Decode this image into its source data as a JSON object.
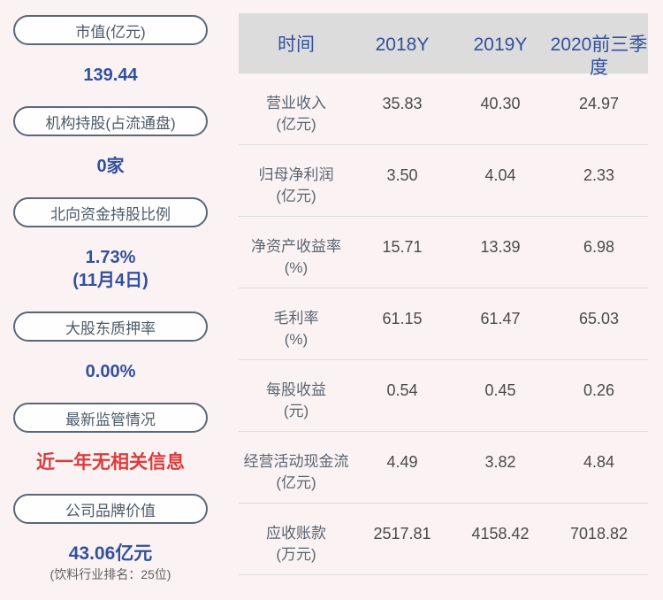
{
  "colors": {
    "page_bg": "#fbf3f3",
    "accent_blue": "#33509e",
    "accent_red": "#dc3b3c",
    "header_bg": "#dcdcdc",
    "pill_border": "#5b6777"
  },
  "sidebar": {
    "items": [
      {
        "label": "市值(亿元)",
        "value": "139.44"
      },
      {
        "label": "机构持股(占流通盘)",
        "value": "0家"
      },
      {
        "label": "北向资金持股比例",
        "value": "1.73%",
        "value_line2": "(11月4日)"
      },
      {
        "label": "大股东质押率",
        "value": "0.00%"
      },
      {
        "label": "最新监管情况",
        "value": "近一年无相关信息"
      },
      {
        "label": "公司品牌价值",
        "value": "43.06亿元",
        "subtext": "(饮料行业排名：25位)"
      }
    ]
  },
  "table": {
    "columns": [
      "时间",
      "2018Y",
      "2019Y",
      "2020前三季度"
    ],
    "rows": [
      {
        "label": "营业收入",
        "unit": "(亿元)",
        "values": [
          "35.83",
          "40.30",
          "24.97"
        ]
      },
      {
        "label": "归母净利润",
        "unit": "(亿元)",
        "values": [
          "3.50",
          "4.04",
          "2.33"
        ]
      },
      {
        "label": "净资产收益率",
        "unit": "(%)",
        "values": [
          "15.71",
          "13.39",
          "6.98"
        ]
      },
      {
        "label": "毛利率",
        "unit": "(%)",
        "values": [
          "61.15",
          "61.47",
          "65.03"
        ]
      },
      {
        "label": "每股收益",
        "unit": "(元)",
        "values": [
          "0.54",
          "0.45",
          "0.26"
        ]
      },
      {
        "label": "经营活动现金流",
        "unit": "(亿元)",
        "values": [
          "4.49",
          "3.82",
          "4.84"
        ]
      },
      {
        "label": "应收账款",
        "unit": "(万元)",
        "values": [
          "2517.81",
          "4158.42",
          "7018.82"
        ]
      }
    ]
  }
}
